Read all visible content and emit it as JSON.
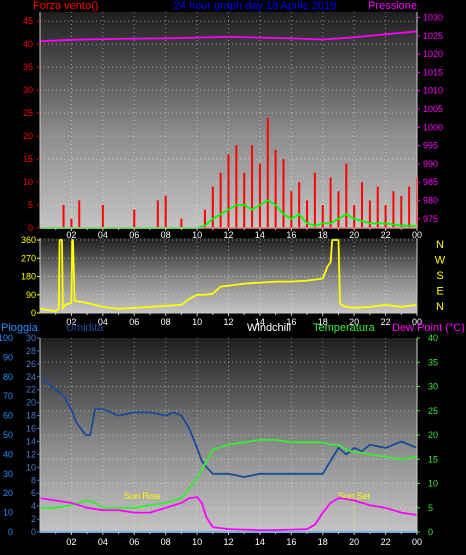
{
  "chart_data": [
    {
      "type": "line",
      "panel": "wind_pressure",
      "title": "24 hour graph day 18 Aprile 2019",
      "left_axis_label": "Forza vento()",
      "right_axis_label": "Pressione",
      "x_ticks": [
        "02",
        "04",
        "06",
        "08",
        "10",
        "12",
        "14",
        "16",
        "18",
        "20",
        "22",
        "00"
      ],
      "left_axis": {
        "ticks": [
          0,
          5,
          10,
          15,
          20,
          25,
          30,
          35,
          40,
          45
        ],
        "range": [
          0,
          47
        ]
      },
      "right_axis": {
        "ticks": [
          975,
          980,
          985,
          990,
          995,
          1000,
          1005,
          1010,
          1015,
          1020,
          1025,
          1030
        ],
        "range": [
          972.5,
          1031.5
        ]
      },
      "grid": true,
      "series": [
        {
          "key": "pressure",
          "axis": "right",
          "color": "#ff00ff",
          "x": [
            0,
            2,
            4,
            6,
            8,
            10,
            12,
            14,
            16,
            18,
            20,
            22,
            24
          ],
          "values": [
            1023.5,
            1023.9,
            1024.1,
            1024.2,
            1024.3,
            1024.5,
            1024.7,
            1024.5,
            1024.3,
            1024.0,
            1024.6,
            1025.4,
            1026.2
          ]
        },
        {
          "key": "gust",
          "axis": "left",
          "color": "#ff0000",
          "style": "spikes",
          "x": [
            0,
            1,
            1.5,
            2,
            2.5,
            3,
            4,
            5,
            6,
            7,
            7.5,
            8,
            9,
            10,
            10.5,
            11,
            11.5,
            12,
            12.5,
            13,
            13.5,
            14,
            14.5,
            15,
            15.5,
            16,
            16.5,
            17,
            17.5,
            18,
            18.5,
            19,
            19.5,
            20,
            20.5,
            21,
            21.5,
            22,
            22.5,
            23,
            23.5,
            24
          ],
          "values": [
            0,
            0,
            5,
            2,
            6,
            0,
            5,
            0,
            4,
            0,
            6,
            7,
            2,
            0,
            4,
            9,
            12,
            16,
            18,
            12,
            18,
            14,
            24,
            17,
            15,
            8,
            10,
            6,
            12,
            5,
            11,
            8,
            14,
            5,
            10,
            6,
            9,
            5,
            8,
            7,
            9,
            11
          ]
        },
        {
          "key": "average",
          "axis": "left",
          "color": "#00ff00",
          "x": [
            0,
            10,
            10.5,
            11,
            11.5,
            12,
            12.5,
            13,
            13.5,
            14,
            14.5,
            15,
            15.5,
            16,
            16.5,
            17,
            17.5,
            18,
            18.5,
            19,
            19.5,
            20,
            21,
            22,
            23,
            24
          ],
          "values": [
            0,
            0,
            0.5,
            2,
            3,
            4,
            5,
            5,
            4,
            5,
            6,
            5,
            3,
            2,
            3,
            1,
            0.5,
            1,
            1,
            2,
            3,
            2,
            1,
            1,
            0.5,
            0.5
          ]
        }
      ]
    },
    {
      "type": "line",
      "panel": "wind_direction",
      "y_ticks": [
        0,
        90,
        180,
        270,
        360
      ],
      "y_range": [
        0,
        370
      ],
      "compass_labels": [
        "N",
        "W",
        "S",
        "E",
        "N"
      ],
      "x_ticks": [
        "02",
        "04",
        "06",
        "08",
        "10",
        "12",
        "14",
        "16",
        "18",
        "20",
        "22",
        "00"
      ],
      "grid": true,
      "series": [
        {
          "key": "direction",
          "color": "#ffff00",
          "x": [
            0,
            0.5,
            1,
            1.2,
            1.25,
            1.4,
            1.45,
            1.5,
            1.6,
            2.0,
            2.05,
            2.1,
            2.2,
            3,
            4,
            5,
            6,
            7,
            8,
            9,
            9.5,
            10,
            10.5,
            11,
            11.5,
            12,
            13,
            14,
            15,
            16,
            17,
            17.5,
            18,
            18.3,
            18.5,
            18.6,
            19,
            19.1,
            19.2,
            19.5,
            20,
            21,
            22,
            23,
            24
          ],
          "values": [
            20,
            15,
            10,
            20,
            360,
            360,
            20,
            30,
            40,
            50,
            360,
            360,
            60,
            50,
            30,
            20,
            25,
            30,
            35,
            40,
            70,
            90,
            90,
            95,
            130,
            135,
            145,
            150,
            155,
            155,
            160,
            165,
            170,
            230,
            250,
            360,
            360,
            50,
            40,
            30,
            25,
            30,
            40,
            30,
            40
          ]
        }
      ]
    },
    {
      "type": "line",
      "panel": "rain_humidity_temperature",
      "labels": [
        "Pioggia",
        "Umidita",
        "Windchill",
        "Temperatura",
        "Dew Point (°C)"
      ],
      "left_rain_ticks": [
        0,
        10,
        20,
        30,
        40,
        50,
        60,
        70,
        80,
        90,
        100
      ],
      "left_hum_ticks": [
        0,
        2,
        4,
        6,
        8,
        10,
        12,
        14,
        16,
        18,
        20,
        22,
        24,
        26,
        28,
        30
      ],
      "right_temp_ticks": [
        0,
        5,
        10,
        15,
        20,
        25,
        30,
        35,
        40
      ],
      "x_ticks": [
        "02",
        "04",
        "06",
        "08",
        "10",
        "12",
        "14",
        "16",
        "18",
        "20",
        "22",
        "00"
      ],
      "annotations": [
        {
          "text": "Sun Rise",
          "x": 6.5
        },
        {
          "text": "Sun Set",
          "x": 20.0
        }
      ],
      "grid": true,
      "series": [
        {
          "key": "humidity",
          "color": "#1a4a9a",
          "x": [
            0,
            0.5,
            1,
            1.5,
            2,
            2.3,
            2.6,
            2.9,
            3.2,
            3.5,
            4,
            5,
            6,
            7,
            8,
            8.5,
            9,
            9.5,
            10,
            10.3,
            10.6,
            11,
            12,
            13,
            14,
            15,
            16,
            17,
            18,
            18.5,
            19,
            19.5,
            20,
            20.5,
            21,
            22,
            23,
            24
          ],
          "values": [
            24,
            23,
            22,
            21,
            19,
            17,
            16,
            15,
            15,
            19,
            19,
            18,
            18.5,
            18.5,
            18,
            18.5,
            18,
            16,
            13,
            11,
            10,
            9,
            9,
            8.5,
            9,
            9,
            9,
            9,
            9,
            11,
            13,
            12,
            13,
            12.5,
            13.5,
            13,
            14,
            13
          ]
        },
        {
          "key": "temperature",
          "color": "#33ee33",
          "x": [
            0,
            1,
            2,
            3,
            3.5,
            4,
            5,
            6,
            7,
            8,
            9,
            9.5,
            10,
            10.5,
            11,
            12,
            13,
            14,
            15,
            16,
            17,
            18,
            18.5,
            19,
            19.5,
            20,
            21,
            22,
            23,
            24
          ],
          "values": [
            5,
            5,
            5.5,
            6.5,
            6,
            5,
            5,
            5,
            5.5,
            6,
            7,
            9,
            11,
            14,
            17,
            18,
            18.5,
            19,
            19,
            18.5,
            18.5,
            18.5,
            18,
            18,
            17,
            16.5,
            16,
            15.5,
            15,
            15.5
          ]
        },
        {
          "key": "dewpoint",
          "color": "#ff00ff",
          "x": [
            0,
            1,
            2,
            2.5,
            3,
            4,
            5,
            6,
            7,
            8,
            9,
            9.5,
            10,
            10.3,
            10.6,
            11,
            12,
            13,
            14,
            15,
            16,
            17,
            17.5,
            18,
            18.5,
            19,
            19.5,
            20,
            21,
            22,
            23,
            24
          ],
          "values": [
            7,
            6.5,
            6,
            5.5,
            5,
            4.5,
            4.5,
            4,
            4,
            5,
            6,
            7,
            7.2,
            6,
            3,
            1,
            0.6,
            0.5,
            0.4,
            0.4,
            0.5,
            0.6,
            1.5,
            4,
            6,
            7,
            6.8,
            6.5,
            5.5,
            5,
            4,
            3.5
          ]
        },
        {
          "key": "rain",
          "color": "#1e90ff",
          "x": [
            0,
            24
          ],
          "values": [
            0,
            0
          ]
        }
      ]
    }
  ]
}
